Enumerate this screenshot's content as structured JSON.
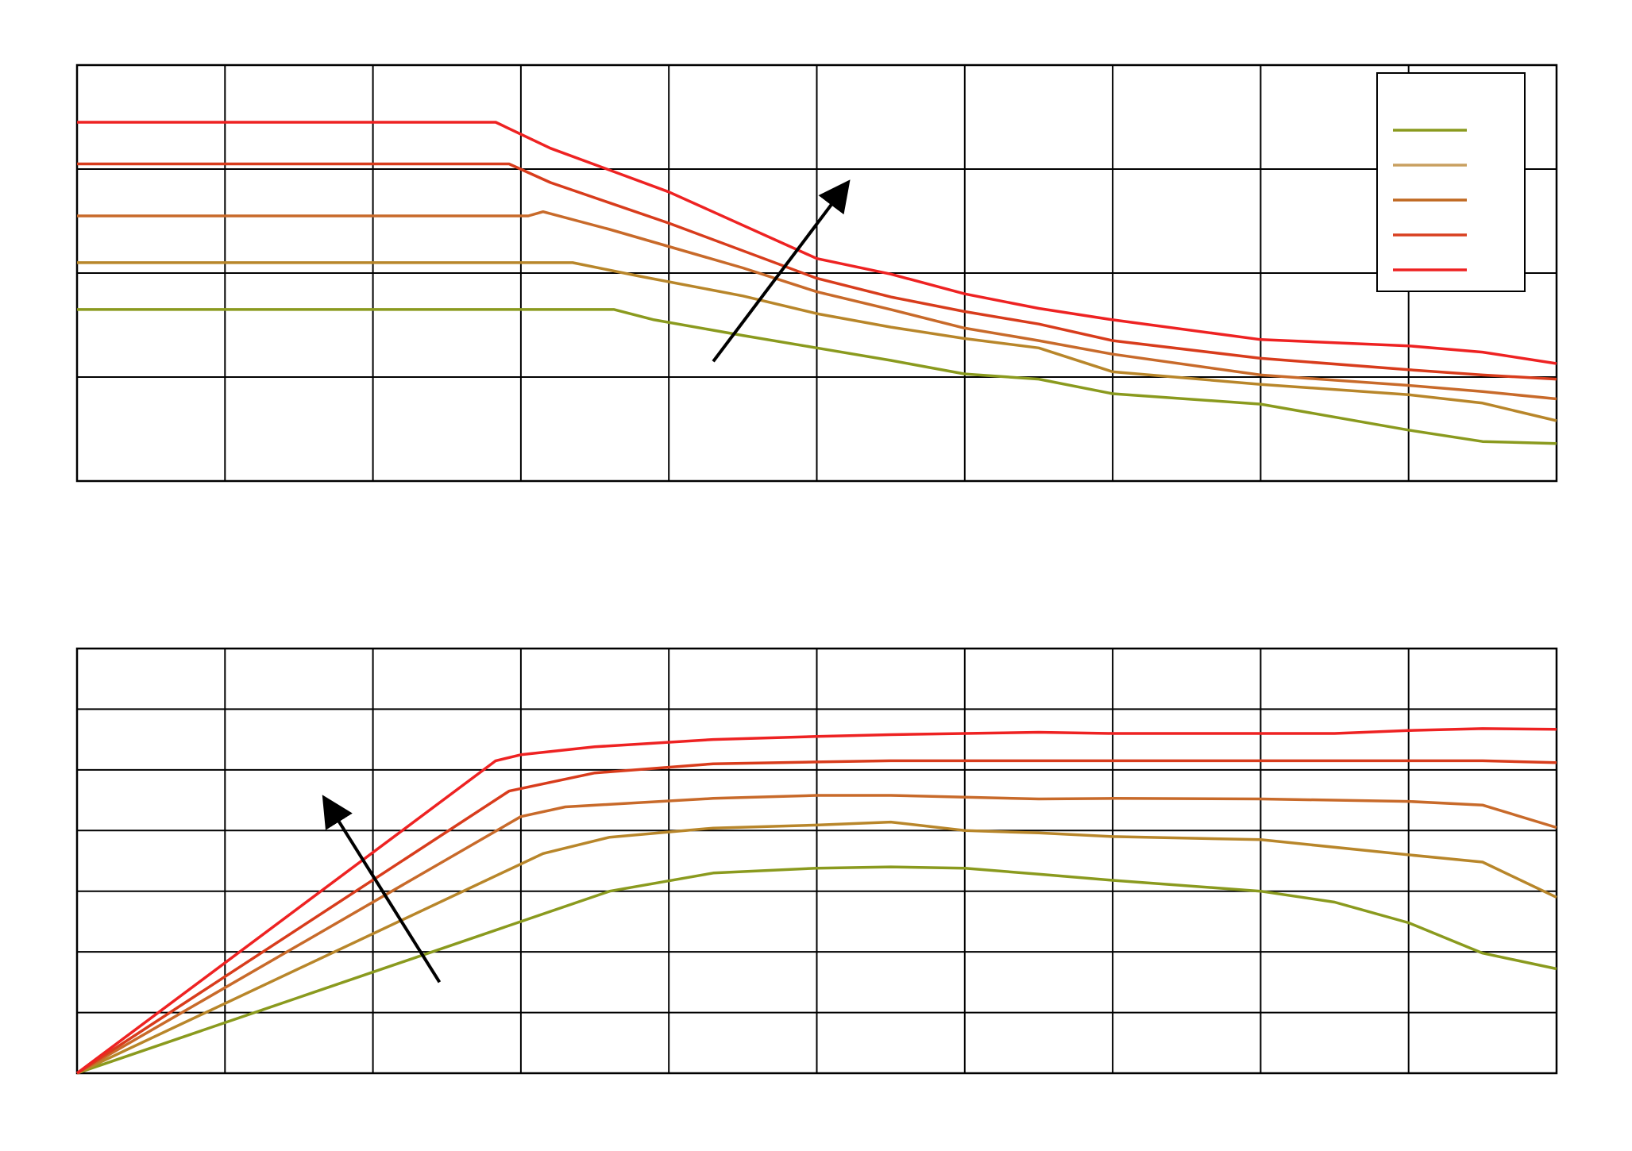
{
  "chart_data": [
    {
      "type": "line",
      "title": "",
      "xlabel": "",
      "ylabel": "",
      "xlim": [
        0,
        10
      ],
      "ylim": [
        0,
        4
      ],
      "x_gridlines": 10,
      "y_gridlines": 4,
      "grid": true,
      "legend": {
        "placement": "top-right",
        "entries": [
          {
            "label": "",
            "color": "#8a9a1e"
          },
          {
            "label": "",
            "color": "#c9a060"
          },
          {
            "label": "",
            "color": "#c06820"
          },
          {
            "label": "",
            "color": "#d84020"
          },
          {
            "label": "",
            "color": "#ee2222"
          }
        ]
      },
      "annotations": [
        {
          "type": "arrow",
          "from": [
            4.3,
            1.15
          ],
          "to": [
            5.2,
            2.85
          ],
          "color": "#000000"
        }
      ],
      "series": [
        {
          "color": "#8a9a1e",
          "x": [
            0,
            3.63,
            3.9,
            4.5,
            5,
            5.5,
            6,
            6.5,
            7,
            8,
            9,
            9.5,
            10
          ],
          "y": [
            1.65,
            1.65,
            1.55,
            1.4,
            1.28,
            1.16,
            1.03,
            0.98,
            0.84,
            0.74,
            0.49,
            0.38,
            0.36
          ]
        },
        {
          "color": "#b8862a",
          "x": [
            0,
            3.35,
            3.8,
            4.5,
            5,
            5.5,
            6,
            6.5,
            7,
            8,
            9,
            9.5,
            10
          ],
          "y": [
            2.1,
            2.1,
            1.97,
            1.78,
            1.61,
            1.48,
            1.37,
            1.28,
            1.05,
            0.93,
            0.83,
            0.75,
            0.58
          ]
        },
        {
          "color": "#c86a2a",
          "x": [
            0,
            3.05,
            3.15,
            3.6,
            4.5,
            5,
            5.5,
            6,
            6.5,
            7,
            8,
            9,
            9.5,
            10
          ],
          "y": [
            2.55,
            2.55,
            2.59,
            2.42,
            2.05,
            1.82,
            1.65,
            1.47,
            1.35,
            1.22,
            1.02,
            0.92,
            0.86,
            0.79
          ]
        },
        {
          "color": "#d83c1c",
          "x": [
            0,
            2.92,
            3.2,
            4,
            5,
            5.5,
            6,
            6.5,
            7,
            8,
            9,
            9.5,
            10
          ],
          "y": [
            3.05,
            3.05,
            2.87,
            2.48,
            1.95,
            1.77,
            1.63,
            1.51,
            1.35,
            1.18,
            1.07,
            1.02,
            0.98
          ]
        },
        {
          "color": "#ee2222",
          "x": [
            0,
            2.83,
            3.2,
            4,
            5,
            5.5,
            6,
            6.5,
            7,
            8,
            9,
            9.5,
            10
          ],
          "y": [
            3.45,
            3.45,
            3.2,
            2.78,
            2.14,
            1.99,
            1.8,
            1.66,
            1.55,
            1.36,
            1.3,
            1.24,
            1.13
          ]
        }
      ]
    },
    {
      "type": "line",
      "title": "",
      "xlabel": "",
      "ylabel": "",
      "xlim": [
        0,
        10
      ],
      "ylim": [
        0,
        7
      ],
      "x_gridlines": 10,
      "y_gridlines": 7,
      "grid": true,
      "annotations": [
        {
          "type": "arrow",
          "from": [
            2.45,
            1.5
          ],
          "to": [
            1.68,
            4.5
          ],
          "color": "#000000"
        }
      ],
      "series": [
        {
          "color": "#8a9a1e",
          "x": [
            0,
            3.6,
            4.3,
            5,
            5.5,
            6,
            6.5,
            7,
            8,
            8.5,
            9,
            9.5,
            10
          ],
          "y": [
            0,
            3.0,
            3.3,
            3.38,
            3.4,
            3.38,
            3.28,
            3.18,
            3.0,
            2.82,
            2.48,
            1.98,
            1.72
          ]
        },
        {
          "color": "#b8862a",
          "x": [
            0,
            3.15,
            3.6,
            4.3,
            5,
            5.5,
            6,
            6.5,
            7,
            8,
            9,
            9.5,
            10
          ],
          "y": [
            0,
            3.62,
            3.89,
            4.04,
            4.09,
            4.14,
            4.0,
            3.96,
            3.9,
            3.85,
            3.6,
            3.48,
            2.9
          ]
        },
        {
          "color": "#c86a2a",
          "x": [
            0,
            3.0,
            3.3,
            4.3,
            5,
            5.5,
            6,
            6.5,
            7,
            8,
            9,
            9.5,
            10
          ],
          "y": [
            0,
            4.23,
            4.39,
            4.53,
            4.58,
            4.58,
            4.55,
            4.52,
            4.53,
            4.52,
            4.48,
            4.42,
            4.05
          ]
        },
        {
          "color": "#d83c1c",
          "x": [
            0,
            2.92,
            3.5,
            4.3,
            5,
            5.5,
            6,
            6.5,
            7,
            8,
            9,
            9.5,
            10
          ],
          "y": [
            0,
            4.65,
            4.95,
            5.1,
            5.13,
            5.15,
            5.15,
            5.15,
            5.15,
            5.15,
            5.15,
            5.15,
            5.12
          ]
        },
        {
          "color": "#ee2222",
          "x": [
            0,
            2.83,
            3.0,
            3.5,
            4.3,
            5,
            5.5,
            6,
            6.5,
            7,
            8,
            8.5,
            9,
            9.5,
            10
          ],
          "y": [
            0,
            5.15,
            5.25,
            5.38,
            5.5,
            5.55,
            5.58,
            5.6,
            5.62,
            5.6,
            5.6,
            5.6,
            5.65,
            5.68,
            5.67
          ]
        }
      ]
    }
  ]
}
